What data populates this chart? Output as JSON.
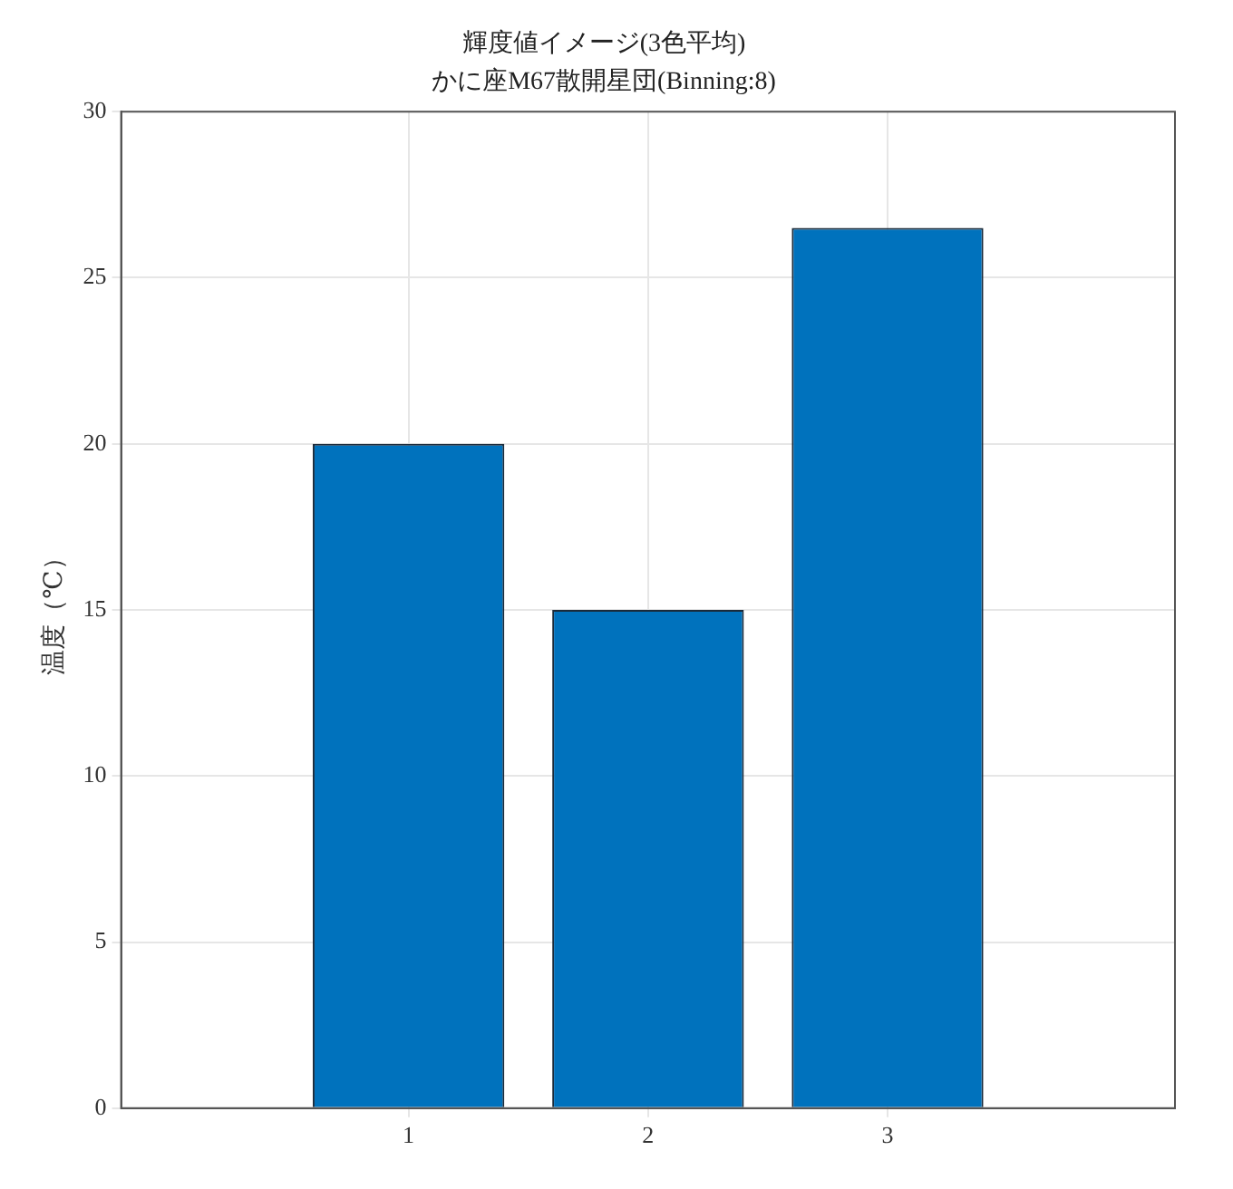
{
  "chart_data": {
    "type": "bar",
    "title": "輝度値イメージ(3色平均)",
    "subtitle": "かに座M67散開星団(Binning:8)",
    "ylabel": "温度（℃）",
    "x": [
      1,
      2,
      3
    ],
    "values": [
      20,
      15,
      26.5
    ],
    "color": "#0072bd",
    "xlim": [
      -0.2,
      4.2
    ],
    "xticks": [
      1,
      2,
      3
    ],
    "ylim": [
      0,
      30
    ],
    "yticks": [
      0,
      5,
      10,
      15,
      20,
      25,
      30
    ],
    "grid": true
  }
}
